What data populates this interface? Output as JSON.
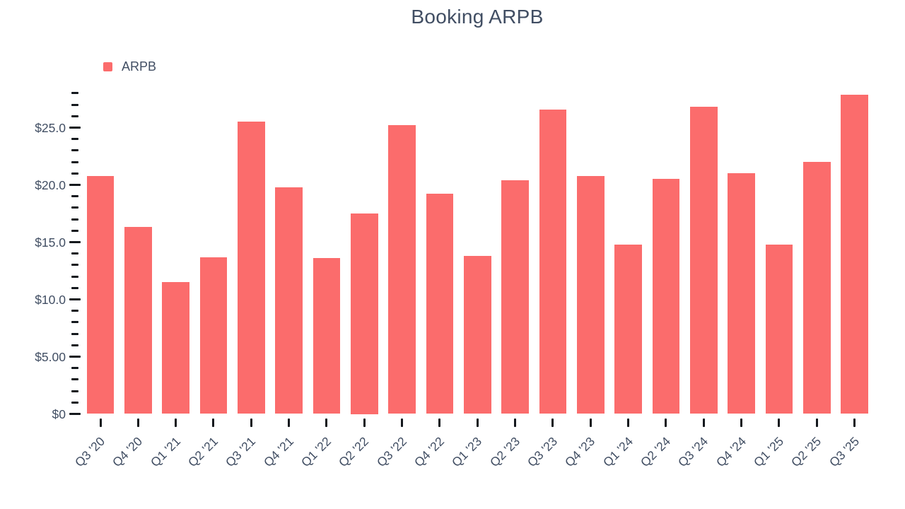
{
  "title": "Booking ARPB",
  "legend": {
    "label": "ARPB"
  },
  "colors": {
    "bar": "#fb6c6c",
    "text": "#414e63",
    "tick": "#14181d",
    "background": "#ffffff"
  },
  "chart_data": {
    "type": "bar",
    "title": "Booking ARPB",
    "series_name": "ARPB",
    "categories": [
      "Q3 '20",
      "Q4 '20",
      "Q1 '21",
      "Q2 '21",
      "Q3 '21",
      "Q4 '21",
      "Q1 '22",
      "Q2 '22",
      "Q3 '22",
      "Q4 '22",
      "Q1 '23",
      "Q2 '23",
      "Q3 '23",
      "Q4 '23",
      "Q1 '24",
      "Q2 '24",
      "Q3 '24",
      "Q4 '24",
      "Q1 '25",
      "Q2 '25",
      "Q3 '25"
    ],
    "values": [
      20.8,
      16.3,
      11.5,
      13.7,
      25.5,
      19.8,
      13.6,
      17.5,
      25.2,
      19.2,
      13.8,
      20.4,
      26.6,
      20.8,
      14.8,
      20.5,
      26.8,
      21.0,
      14.8,
      22.0,
      27.9
    ],
    "xlabel": "",
    "ylabel": "",
    "ylim": [
      0,
      28
    ],
    "y_major_ticks": [
      0,
      5,
      10,
      15,
      20,
      25
    ],
    "y_tick_labels": [
      "$0",
      "$5.00",
      "$10.0",
      "$15.0",
      "$20.0",
      "$25.0"
    ],
    "y_minor_tick_step": 1,
    "grid": "off",
    "legend_position": "top-left",
    "bar_color": "#fb6c6c"
  }
}
